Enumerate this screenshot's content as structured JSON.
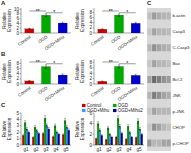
{
  "chart_data": [
    {
      "type": "bar",
      "title": "A",
      "categories": [
        "Control",
        "OGD",
        "OGD+Mihu"
      ],
      "values": [
        1.8,
        7.5,
        4.2
      ],
      "errors": [
        0.2,
        0.6,
        0.4
      ],
      "colors": [
        "#cc0000",
        "#00aa00",
        "#0000cc"
      ],
      "ylabel": "Relative\nExpression",
      "ylim": [
        0,
        10.5219
      ],
      "yticks": [
        0,
        2,
        4,
        6,
        8,
        10
      ],
      "annotations": [
        {
          "text": "**",
          "categories": [
            "Control",
            "OGD"
          ],
          "y": 9.2583
        },
        {
          "text": "*",
          "categories": [
            "OGD",
            "OGD+Mihu"
          ],
          "y": 8.5212
        }
      ]
    },
    {
      "type": "bar",
      "categories": [
        "Control",
        "OGD",
        "OGD+Mihu"
      ],
      "values": [
        1.5,
        7.0,
        3.8
      ],
      "errors": [
        0.15,
        0.5,
        0.35
      ],
      "colors": [
        "#cc0000",
        "#00aa00",
        "#0000cc"
      ],
      "ylabel": "Relative\nExpression",
      "ylim": [
        0,
        9.7425
      ],
      "yticks": [
        0,
        2,
        4,
        6,
        8
      ],
      "annotations": [
        {
          "text": "**",
          "categories": [
            "Control",
            "OGD"
          ],
          "y": 8.5725
        },
        {
          "text": "*",
          "categories": [
            "OGD",
            "OGD+Mihu"
          ],
          "y": 7.89
        }
      ]
    },
    {
      "type": "bar",
      "title": "B",
      "categories": [
        "Control",
        "OGD",
        "OGD+Mihu"
      ],
      "values": [
        1.2,
        6.8,
        3.5
      ],
      "errors": [
        0.15,
        0.7,
        0.45
      ],
      "colors": [
        "#cc0000",
        "#00aa00",
        "#0000cc"
      ],
      "ylabel": "Relative\nExpression",
      "ylim": [
        0,
        9.7425
      ],
      "yticks": [
        0,
        2,
        4,
        6,
        8
      ],
      "annotations": [
        {
          "text": "**",
          "categories": [
            "Control",
            "OGD"
          ],
          "y": 8.5725
        },
        {
          "text": "*",
          "categories": [
            "OGD",
            "OGD+Mihu"
          ],
          "y": 7.89
        }
      ]
    },
    {
      "type": "bar",
      "categories": [
        "Control",
        "OGD",
        "OGD+Mihu"
      ],
      "values": [
        1.0,
        6.5,
        3.2
      ],
      "errors": [
        0.12,
        0.6,
        0.4
      ],
      "colors": [
        "#cc0000",
        "#00aa00",
        "#0000cc"
      ],
      "ylabel": "Relative\nExpression",
      "ylim": [
        0,
        9.2229
      ],
      "yticks": [
        0,
        2,
        4,
        6,
        8
      ],
      "annotations": [
        {
          "text": "**",
          "categories": [
            "Control",
            "OGD"
          ],
          "y": 8.1153
        },
        {
          "text": "*",
          "categories": [
            "OGD",
            "OGD+Mihu"
          ],
          "y": 7.4692
        }
      ]
    },
    {
      "type": "bar",
      "title": "C",
      "categories": [
        "g1",
        "g2",
        "g3",
        "g4",
        "g5"
      ],
      "series": [
        {
          "color": "#cc0000",
          "values": [
            1.5,
            1.2,
            1.8,
            1.3,
            1.6
          ],
          "errors": [
            0.15,
            0.12,
            0.18,
            0.13,
            0.16
          ]
        },
        {
          "color": "#00aa00",
          "values": [
            3.5,
            2.8,
            4.2,
            3.0,
            3.8
          ],
          "errors": [
            0.35,
            0.28,
            0.42,
            0.3,
            0.38
          ]
        },
        {
          "color": "#3399ff",
          "values": [
            2.5,
            2.2,
            3.0,
            2.0,
            2.8
          ],
          "errors": [
            0.25,
            0.22,
            0.3,
            0.2,
            0.28
          ]
        },
        {
          "color": "#000099",
          "values": [
            2.0,
            1.8,
            2.5,
            1.7,
            2.3
          ],
          "errors": [
            0.2,
            0.18,
            0.25,
            0.17,
            0.23
          ]
        }
      ],
      "ylabel": "Relative\nExpression",
      "ylim": [
        0,
        5
      ],
      "yticks": [
        0,
        1,
        2,
        3,
        4,
        5
      ]
    },
    {
      "type": "bar",
      "categories": [
        "g1",
        "g2",
        "g3",
        "g4",
        "g5"
      ],
      "series": [
        {
          "name": "Control",
          "color": "#cc0000",
          "values": [
            1.2,
            1.0,
            1.5,
            1.1,
            1.4
          ],
          "errors": [
            0.12,
            0.1,
            0.15,
            0.11,
            0.14
          ]
        },
        {
          "name": "OGD",
          "color": "#00aa00",
          "values": [
            4.0,
            3.2,
            5.0,
            3.5,
            4.5
          ],
          "errors": [
            0.4,
            0.32,
            0.5,
            0.35,
            0.45
          ]
        },
        {
          "name": "OGD+Mihu",
          "color": "#3399ff",
          "values": [
            2.8,
            2.0,
            3.5,
            2.3,
            3.0
          ],
          "errors": [
            0.28,
            0.2,
            0.35,
            0.23,
            0.3
          ]
        },
        {
          "name": "OGD+Mihu2",
          "color": "#000099",
          "values": [
            1.8,
            1.5,
            2.2,
            1.5,
            2.0
          ],
          "errors": [
            0.18,
            0.15,
            0.22,
            0.15,
            0.2
          ]
        }
      ],
      "ylabel": "Relative\nExpression",
      "ylim": [
        0,
        6
      ],
      "yticks": [
        0,
        2,
        4,
        6
      ],
      "legend": "upper right"
    },
    {
      "type": "heatmap",
      "title": "C",
      "categories": [
        "p-CHOP",
        "CHOP",
        "p-JNK",
        "JNK",
        "Bcl-2",
        "Bax",
        "C-Casp3",
        "Casp3",
        "b-actin"
      ],
      "cells": [
        [
          0.55,
          0.38,
          0.38,
          0.48,
          0.48
        ],
        [
          0.3,
          0.58,
          0.48,
          0.38,
          0.33
        ],
        [
          0.3,
          0.48,
          0.38,
          0.38,
          0.38
        ],
        [
          0.38,
          0.68,
          0.58,
          0.48,
          0.43
        ],
        [
          0.48,
          0.78,
          0.68,
          0.58,
          0.53
        ],
        [
          0.3,
          0.48,
          0.38,
          0.38,
          0.33
        ],
        [
          0.38,
          0.58,
          0.48,
          0.43,
          0.4
        ],
        [
          0.3,
          0.48,
          0.38,
          0.38,
          0.36
        ],
        [
          0.33,
          0.52,
          0.43,
          0.4,
          0.38
        ]
      ]
    }
  ]
}
